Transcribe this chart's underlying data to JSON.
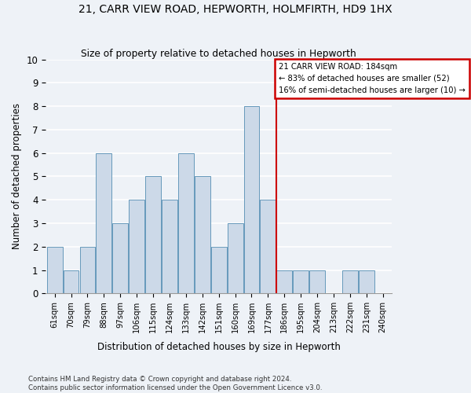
{
  "title": "21, CARR VIEW ROAD, HEPWORTH, HOLMFIRTH, HD9 1HX",
  "subtitle": "Size of property relative to detached houses in Hepworth",
  "xlabel": "Distribution of detached houses by size in Hepworth",
  "ylabel": "Number of detached properties",
  "categories": [
    "61sqm",
    "70sqm",
    "79sqm",
    "88sqm",
    "97sqm",
    "106sqm",
    "115sqm",
    "124sqm",
    "133sqm",
    "142sqm",
    "151sqm",
    "160sqm",
    "169sqm",
    "177sqm",
    "186sqm",
    "195sqm",
    "204sqm",
    "213sqm",
    "222sqm",
    "231sqm",
    "240sqm"
  ],
  "values": [
    2,
    1,
    2,
    6,
    3,
    4,
    5,
    4,
    6,
    5,
    2,
    3,
    8,
    4,
    1,
    1,
    1,
    0,
    1,
    1,
    0
  ],
  "bar_color": "#ccd9e8",
  "bar_edge_color": "#6699bb",
  "vline_color": "#cc0000",
  "annotation_box_edge": "#cc0000",
  "ylim": [
    0,
    10
  ],
  "yticks": [
    0,
    1,
    2,
    3,
    4,
    5,
    6,
    7,
    8,
    9,
    10
  ],
  "marker_label": "21 CARR VIEW ROAD: 184sqm",
  "annotation_line1": "← 83% of detached houses are smaller (52)",
  "annotation_line2": "16% of semi-detached houses are larger (10) →",
  "footer1": "Contains HM Land Registry data © Crown copyright and database right 2024.",
  "footer2": "Contains public sector information licensed under the Open Government Licence v3.0.",
  "background_color": "#eef2f7",
  "grid_color": "#ffffff",
  "vline_x": 13.5
}
